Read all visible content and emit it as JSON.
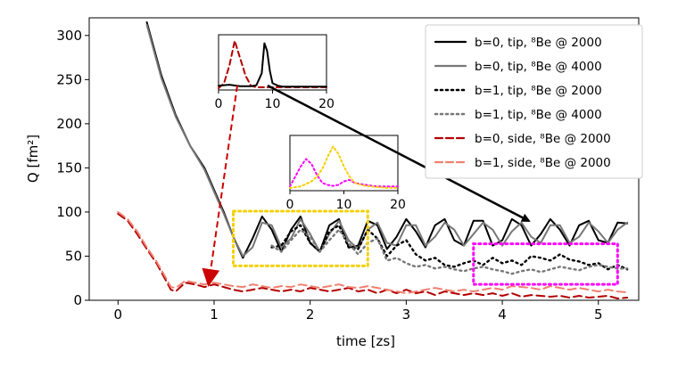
{
  "chart_data": {
    "type": "line",
    "xlabel": "time [zs]",
    "ylabel": "Q [fm²]",
    "xlim": [
      -0.3,
      5.42
    ],
    "ylim": [
      0,
      320
    ],
    "x_ticks": [
      0,
      1,
      2,
      3,
      4,
      5
    ],
    "y_ticks": [
      0,
      50,
      100,
      150,
      200,
      250,
      300
    ],
    "grid": false,
    "legend_position": "top-right",
    "legend": [
      {
        "label": "b=0, tip, ⁸Be @ 2000",
        "color": "#000000",
        "dash": "solid"
      },
      {
        "label": "b=0, tip, ⁸Be @ 4000",
        "color": "#777777",
        "dash": "solid"
      },
      {
        "label": "b=1, tip, ⁸Be @ 2000",
        "color": "#000000",
        "dash": "dotted"
      },
      {
        "label": "b=1, tip, ⁸Be @ 4000",
        "color": "#777777",
        "dash": "dotted"
      },
      {
        "label": "b=0, side, ⁸Be @ 2000",
        "color": "#b30000",
        "dash": "dashed"
      },
      {
        "label": "b=1, side, ⁸Be @ 2000",
        "color": "#f08070",
        "dash": "dashed"
      }
    ],
    "series": [
      {
        "style": "b0_tip_2000",
        "color": "#000000",
        "dash": "solid",
        "x": [
          0.3,
          0.45,
          0.6,
          0.75,
          0.9,
          1.0,
          1.1,
          1.2,
          1.3,
          1.4,
          1.5,
          1.6,
          1.7,
          1.8,
          1.9,
          2.0,
          2.1,
          2.2,
          2.3,
          2.4,
          2.5,
          2.6,
          2.7,
          2.8,
          2.9,
          3.0,
          3.1,
          3.2,
          3.3,
          3.4,
          3.5,
          3.6,
          3.7,
          3.8,
          3.9,
          4.0,
          4.1,
          4.2,
          4.3,
          4.4,
          4.5,
          4.6,
          4.7,
          4.8,
          4.9,
          5.0,
          5.1,
          5.2,
          5.3
        ],
        "y": [
          315,
          255,
          210,
          175,
          150,
          125,
          100,
          72,
          48,
          70,
          95,
          80,
          55,
          80,
          95,
          65,
          55,
          85,
          92,
          60,
          62,
          90,
          85,
          58,
          72,
          92,
          78,
          60,
          85,
          92,
          68,
          62,
          90,
          90,
          62,
          68,
          92,
          85,
          62,
          75,
          92,
          80,
          62,
          85,
          90,
          68,
          65,
          88,
          87
        ]
      },
      {
        "style": "b0_tip_4000",
        "color": "#777777",
        "dash": "solid",
        "x": [
          0.3,
          0.45,
          0.6,
          0.75,
          0.9,
          1.0,
          1.1,
          1.2,
          1.3,
          1.4,
          1.5,
          1.6,
          1.7,
          1.8,
          1.9,
          2.0,
          2.1,
          2.2,
          2.3,
          2.4,
          2.5,
          2.6,
          2.7,
          2.8,
          2.9,
          3.0,
          3.1,
          3.2,
          3.3,
          3.4,
          3.5,
          3.6,
          3.7,
          3.8,
          3.9,
          4.0,
          4.1,
          4.2,
          4.3,
          4.4,
          4.5,
          4.6,
          4.7,
          4.8,
          4.9,
          5.0,
          5.1,
          5.2,
          5.3
        ],
        "y": [
          312,
          252,
          208,
          175,
          148,
          123,
          98,
          72,
          50,
          60,
          88,
          85,
          60,
          70,
          92,
          75,
          55,
          75,
          90,
          68,
          58,
          80,
          88,
          65,
          62,
          85,
          85,
          62,
          72,
          88,
          80,
          62,
          75,
          88,
          80,
          62,
          78,
          88,
          72,
          65,
          85,
          85,
          65,
          72,
          88,
          78,
          65,
          80,
          88
        ]
      },
      {
        "style": "b1_tip_2000",
        "color": "#000000",
        "dash": "dotted",
        "x": [
          1.6,
          1.7,
          1.8,
          1.9,
          2.0,
          2.1,
          2.2,
          2.3,
          2.4,
          2.5,
          2.6,
          2.7,
          2.8,
          2.9,
          3.0,
          3.1,
          3.2,
          3.3,
          3.4,
          3.5,
          3.6,
          3.7,
          3.8,
          3.9,
          4.0,
          4.1,
          4.2,
          4.3,
          4.4,
          4.5,
          4.6,
          4.7,
          4.8,
          4.9,
          5.0,
          5.1,
          5.2,
          5.3
        ],
        "y": [
          60,
          62,
          78,
          85,
          65,
          55,
          78,
          85,
          60,
          58,
          80,
          70,
          50,
          62,
          68,
          52,
          45,
          48,
          40,
          38,
          42,
          45,
          40,
          48,
          42,
          45,
          40,
          50,
          48,
          45,
          52,
          46,
          44,
          40,
          42,
          35,
          40,
          35
        ]
      },
      {
        "style": "b1_tip_4000",
        "color": "#777777",
        "dash": "dotted",
        "x": [
          1.6,
          1.7,
          1.8,
          1.9,
          2.0,
          2.1,
          2.2,
          2.3,
          2.4,
          2.5,
          2.6,
          2.7,
          2.8,
          2.9,
          3.0,
          3.1,
          3.2,
          3.3,
          3.4,
          3.5,
          3.6,
          3.7,
          3.8,
          3.9,
          4.0,
          4.1,
          4.2,
          4.3,
          4.4,
          4.5,
          4.6,
          4.7,
          4.8,
          4.9,
          5.0,
          5.1,
          5.2,
          5.3
        ],
        "y": [
          62,
          55,
          68,
          80,
          72,
          55,
          68,
          80,
          65,
          52,
          65,
          70,
          45,
          48,
          42,
          38,
          40,
          36,
          38,
          35,
          33,
          36,
          38,
          35,
          33,
          30,
          33,
          35,
          32,
          35,
          38,
          36,
          34,
          38,
          40,
          38,
          36,
          36
        ]
      },
      {
        "style": "b0_side_2000",
        "color": "#b30000",
        "dash": "dashed",
        "x": [
          0.0,
          0.1,
          0.2,
          0.3,
          0.4,
          0.5,
          0.55,
          0.6,
          0.65,
          0.7,
          0.8,
          0.9,
          1.0,
          1.1,
          1.2,
          1.3,
          1.4,
          1.5,
          1.6,
          1.7,
          1.8,
          1.9,
          2.0,
          2.1,
          2.2,
          2.3,
          2.4,
          2.5,
          2.6,
          2.7,
          2.8,
          2.9,
          3.0,
          3.1,
          3.2,
          3.3,
          3.4,
          3.5,
          3.6,
          3.7,
          3.8,
          3.9,
          4.0,
          4.1,
          4.2,
          4.3,
          4.4,
          4.5,
          4.6,
          4.7,
          4.8,
          4.9,
          5.0,
          5.1,
          5.2,
          5.3
        ],
        "y": [
          98,
          90,
          75,
          58,
          42,
          22,
          12,
          10,
          15,
          20,
          18,
          15,
          18,
          15,
          12,
          10,
          12,
          14,
          12,
          10,
          12,
          10,
          14,
          12,
          10,
          12,
          14,
          10,
          12,
          8,
          12,
          8,
          12,
          8,
          10,
          6,
          10,
          8,
          6,
          8,
          6,
          8,
          5,
          8,
          4,
          6,
          5,
          4,
          5,
          3,
          5,
          3,
          4,
          5,
          2,
          3
        ]
      },
      {
        "style": "b1_side_2000",
        "color": "#f08070",
        "dash": "dashed",
        "x": [
          0.0,
          0.1,
          0.2,
          0.3,
          0.4,
          0.5,
          0.55,
          0.6,
          0.65,
          0.7,
          0.8,
          0.9,
          1.0,
          1.1,
          1.2,
          1.3,
          1.4,
          1.5,
          1.6,
          1.7,
          1.8,
          1.9,
          2.0,
          2.1,
          2.2,
          2.3,
          2.4,
          2.5,
          2.6,
          2.7,
          2.8,
          2.9,
          3.0,
          3.1,
          3.2,
          3.3,
          3.4,
          3.5,
          3.6,
          3.7,
          3.8,
          3.9,
          4.0,
          4.1,
          4.2,
          4.3,
          4.4,
          4.5,
          4.6,
          4.7,
          4.8,
          4.9,
          5.0,
          5.1,
          5.2,
          5.3
        ],
        "y": [
          100,
          92,
          78,
          60,
          44,
          25,
          15,
          14,
          18,
          22,
          20,
          18,
          20,
          18,
          16,
          15,
          18,
          16,
          14,
          16,
          15,
          18,
          16,
          14,
          16,
          18,
          15,
          14,
          16,
          14,
          12,
          10,
          8,
          10,
          12,
          14,
          12,
          10,
          12,
          10,
          12,
          14,
          12,
          16,
          15,
          14,
          12,
          16,
          14,
          12,
          14,
          12,
          10,
          12,
          10,
          9
        ]
      }
    ],
    "highlight_boxes": [
      {
        "color": "#f5d000",
        "x": [
          1.2,
          2.6
        ],
        "y": [
          39,
          101
        ]
      },
      {
        "color": "#ff00ff",
        "x": [
          3.7,
          5.2
        ],
        "y": [
          18,
          64
        ]
      }
    ],
    "insets": [
      {
        "name": "upper-inset",
        "xlim": [
          0,
          20
        ],
        "x_ticks": [
          "0",
          "10",
          "20"
        ],
        "curves": [
          {
            "color": "#b30000",
            "dash": "dashed",
            "x": [
              0,
              1,
              2,
              3,
              4,
              5,
              6,
              7,
              8,
              9,
              10,
              12,
              14,
              16,
              18,
              20
            ],
            "y": [
              0.0,
              0.1,
              0.45,
              0.95,
              0.6,
              0.25,
              0.05,
              0.02,
              0.02,
              0.02,
              0.02,
              0.02,
              0.02,
              0.02,
              0.02,
              0.02
            ]
          },
          {
            "color": "#000000",
            "dash": "solid",
            "x": [
              0,
              2,
              4,
              6,
              7,
              8,
              8.5,
              9,
              9.5,
              10,
              11,
              12,
              14,
              16,
              18,
              20
            ],
            "y": [
              0.05,
              0.07,
              0.04,
              0.04,
              0.06,
              0.3,
              0.9,
              0.75,
              0.35,
              0.1,
              0.05,
              0.03,
              0.03,
              0.03,
              0.03,
              0.03
            ]
          }
        ]
      },
      {
        "name": "lower-inset",
        "xlim": [
          0,
          20
        ],
        "x_ticks": [
          "0",
          "10",
          "20"
        ],
        "curves": [
          {
            "color": "#ff00ff",
            "dash": "dotted",
            "x": [
              0,
              1,
              2,
              3,
              4,
              5,
              6,
              7,
              8,
              9,
              10,
              11,
              12,
              14,
              16,
              18,
              20
            ],
            "y": [
              0.05,
              0.25,
              0.45,
              0.6,
              0.5,
              0.28,
              0.12,
              0.08,
              0.06,
              0.08,
              0.15,
              0.18,
              0.12,
              0.08,
              0.05,
              0.05,
              0.05
            ]
          },
          {
            "color": "#f5d000",
            "dash": "dotted",
            "x": [
              0,
              2,
              4,
              5,
              6,
              7,
              8,
              9,
              10,
              11,
              12,
              14,
              16,
              18,
              20
            ],
            "y": [
              0.02,
              0.05,
              0.15,
              0.25,
              0.4,
              0.65,
              0.85,
              0.7,
              0.45,
              0.25,
              0.12,
              0.06,
              0.04,
              0.02,
              0.02
            ]
          }
        ]
      }
    ]
  }
}
